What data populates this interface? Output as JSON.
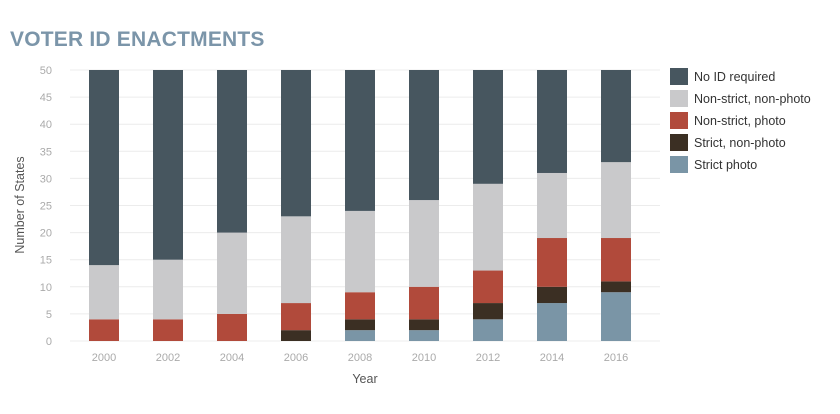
{
  "chart_data": {
    "type": "bar",
    "stacked": true,
    "title": "VOTER ID ENACTMENTS",
    "xlabel": "Year",
    "ylabel": "Number of States",
    "categories": [
      "2000",
      "2002",
      "2004",
      "2006",
      "2008",
      "2010",
      "2012",
      "2014",
      "2016"
    ],
    "ylim": [
      0,
      50
    ],
    "yticks": [
      0,
      5,
      10,
      15,
      20,
      25,
      30,
      35,
      40,
      45,
      50
    ],
    "grid": true,
    "legend_position": "right",
    "series": [
      {
        "name": "Strict photo",
        "color": "#7a95a6",
        "values": [
          0,
          0,
          0,
          0,
          2,
          2,
          4,
          7,
          9
        ]
      },
      {
        "name": "Strict, non-photo",
        "color": "#3b2f23",
        "values": [
          0,
          0,
          0,
          2,
          2,
          2,
          3,
          3,
          2
        ]
      },
      {
        "name": "Non-strict, photo",
        "color": "#b14a3b",
        "values": [
          4,
          4,
          5,
          5,
          5,
          6,
          6,
          9,
          8
        ]
      },
      {
        "name": "Non-strict, non-photo",
        "color": "#c9c9cb",
        "values": [
          10,
          11,
          15,
          16,
          15,
          16,
          16,
          12,
          14
        ]
      },
      {
        "name": "No ID required",
        "color": "#47565f",
        "values": [
          36,
          35,
          30,
          27,
          26,
          24,
          21,
          19,
          17
        ]
      }
    ],
    "legend_order": [
      "No ID required",
      "Non-strict, non-photo",
      "Non-strict, photo",
      "Strict, non-photo",
      "Strict photo"
    ]
  }
}
